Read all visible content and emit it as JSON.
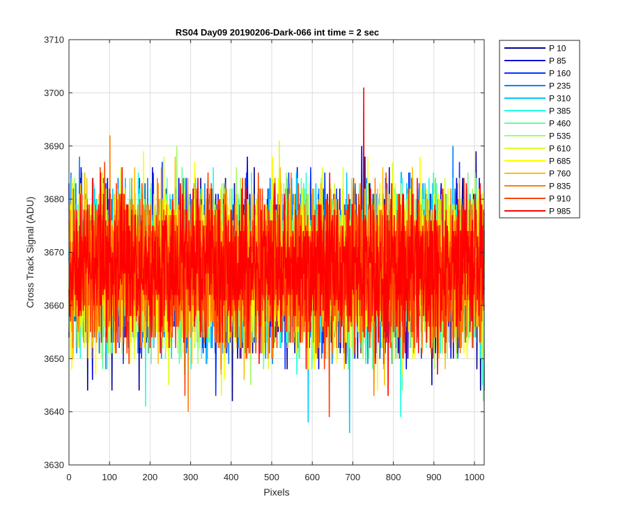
{
  "chart_data": {
    "type": "line",
    "title": "RS04 Day09 20190206-Dark-066 int time = 2 sec",
    "xlabel": "Pixels",
    "ylabel": "Cross Track Signal (ADU)",
    "xlim": [
      0,
      1024
    ],
    "ylim": [
      3630,
      3710
    ],
    "xticks": [
      0,
      100,
      200,
      300,
      400,
      500,
      600,
      700,
      800,
      900,
      1000
    ],
    "yticks": [
      3630,
      3640,
      3650,
      3660,
      3670,
      3680,
      3690,
      3700,
      3710
    ],
    "grid": true,
    "legend_position": "outside-right",
    "series": [
      {
        "name": "P 10",
        "color": "#00008f",
        "center": 3667,
        "spread": 7,
        "peaks": [
          [
            27,
            3684
          ],
          [
            104,
            3676
          ],
          [
            240,
            3682
          ],
          [
            354,
            3678
          ],
          [
            457,
            3686
          ],
          [
            521,
            3672
          ],
          [
            548,
            3684
          ],
          [
            730,
            3688
          ],
          [
            781,
            3684
          ],
          [
            889,
            3680
          ],
          [
            1004,
            3689
          ]
        ],
        "troughs": [
          [
            46,
            3644
          ],
          [
            106,
            3644
          ],
          [
            173,
            3644
          ],
          [
            403,
            3642
          ],
          [
            538,
            3648
          ],
          [
            712,
            3650
          ],
          [
            895,
            3645
          ],
          [
            1015,
            3644
          ],
          [
            1024,
            3644
          ]
        ]
      },
      {
        "name": "P 85",
        "color": "#0000d8",
        "center": 3667,
        "spread": 7,
        "peaks": [
          [
            30,
            3686
          ],
          [
            106,
            3680
          ],
          [
            206,
            3686
          ],
          [
            352,
            3682
          ],
          [
            440,
            3688
          ],
          [
            668,
            3682
          ],
          [
            722,
            3690
          ],
          [
            790,
            3686
          ],
          [
            956,
            3684
          ]
        ],
        "troughs": [
          [
            8,
            3650
          ],
          [
            58,
            3646
          ],
          [
            147,
            3652
          ],
          [
            389,
            3651
          ],
          [
            631,
            3651
          ],
          [
            757,
            3651
          ],
          [
            942,
            3650
          ]
        ]
      },
      {
        "name": "P 160",
        "color": "#0032ff",
        "center": 3667,
        "spread": 7,
        "peaks": [
          [
            31,
            3685
          ],
          [
            230,
            3687
          ],
          [
            438,
            3685
          ],
          [
            506,
            3683
          ],
          [
            596,
            3686
          ],
          [
            838,
            3685
          ]
        ],
        "troughs": [
          [
            10,
            3651
          ],
          [
            179,
            3650
          ],
          [
            362,
            3643
          ],
          [
            533,
            3648
          ],
          [
            689,
            3649
          ],
          [
            797,
            3649
          ],
          [
            869,
            3650
          ]
        ]
      },
      {
        "name": "P 235",
        "color": "#0080ff",
        "center": 3667,
        "spread": 7,
        "peaks": [
          [
            26,
            3688
          ],
          [
            121,
            3684
          ],
          [
            316,
            3680
          ],
          [
            543,
            3683
          ],
          [
            734,
            3684
          ],
          [
            947,
            3690
          ]
        ],
        "troughs": [
          [
            19,
            3651
          ],
          [
            228,
            3650
          ],
          [
            485,
            3650
          ],
          [
            691,
            3649
          ],
          [
            777,
            3648
          ],
          [
            959,
            3650
          ]
        ]
      },
      {
        "name": "P 310",
        "color": "#00c8ff",
        "center": 3667,
        "spread": 7,
        "peaks": [
          [
            87,
            3682
          ],
          [
            312,
            3684
          ],
          [
            609,
            3683
          ],
          [
            683,
            3680
          ],
          [
            836,
            3682
          ]
        ],
        "troughs": [
          [
            92,
            3651
          ],
          [
            253,
            3650
          ],
          [
            590,
            3638
          ],
          [
            692,
            3636
          ],
          [
            822,
            3648
          ]
        ]
      },
      {
        "name": "P 385",
        "color": "#20ffdf",
        "center": 3667,
        "spread": 7,
        "peaks": [
          [
            8,
            3680
          ],
          [
            201,
            3682
          ],
          [
            356,
            3686
          ],
          [
            604,
            3682
          ],
          [
            802,
            3682
          ]
        ],
        "troughs": [
          [
            189,
            3641
          ],
          [
            301,
            3648
          ],
          [
            562,
            3647
          ],
          [
            732,
            3649
          ],
          [
            818,
            3639
          ],
          [
            1020,
            3645
          ]
        ]
      },
      {
        "name": "P 460",
        "color": "#60ff9f",
        "center": 3667,
        "spread": 7,
        "peaks": [
          [
            120,
            3682
          ],
          [
            279,
            3686
          ],
          [
            417,
            3681
          ],
          [
            581,
            3682
          ],
          [
            735,
            3683
          ]
        ],
        "troughs": [
          [
            83,
            3648
          ],
          [
            272,
            3649
          ],
          [
            480,
            3648
          ],
          [
            700,
            3650
          ],
          [
            822,
            3644
          ],
          [
            1022,
            3642
          ]
        ]
      },
      {
        "name": "P 535",
        "color": "#9fff60",
        "center": 3667,
        "spread": 7,
        "peaks": [
          [
            14,
            3684
          ],
          [
            266,
            3690
          ],
          [
            413,
            3686
          ],
          [
            622,
            3684
          ],
          [
            848,
            3684
          ]
        ],
        "troughs": [
          [
            26,
            3652
          ],
          [
            285,
            3648
          ],
          [
            448,
            3645
          ],
          [
            662,
            3650
          ],
          [
            933,
            3650
          ]
        ]
      },
      {
        "name": "P 610",
        "color": "#dfff20",
        "center": 3667,
        "spread": 7,
        "peaks": [
          [
            128,
            3686
          ],
          [
            234,
            3688
          ],
          [
            519,
            3691
          ],
          [
            676,
            3686
          ],
          [
            798,
            3687
          ]
        ],
        "troughs": [
          [
            5,
            3650
          ],
          [
            246,
            3645
          ],
          [
            376,
            3643
          ],
          [
            591,
            3652
          ],
          [
            822,
            3647
          ]
        ]
      },
      {
        "name": "P 685",
        "color": "#ffff00",
        "center": 3667,
        "spread": 7,
        "peaks": [
          [
            184,
            3689
          ],
          [
            310,
            3687
          ],
          [
            502,
            3688
          ],
          [
            737,
            3688
          ],
          [
            866,
            3688
          ]
        ],
        "troughs": [
          [
            66,
            3647
          ],
          [
            150,
            3649
          ],
          [
            383,
            3646
          ],
          [
            606,
            3648
          ],
          [
            761,
            3644
          ]
        ]
      },
      {
        "name": "P 760",
        "color": "#ffbf00",
        "center": 3667,
        "spread": 7,
        "peaks": [
          [
            44,
            3684
          ],
          [
            162,
            3686
          ],
          [
            262,
            3688
          ],
          [
            521,
            3686
          ],
          [
            774,
            3686
          ]
        ],
        "troughs": [
          [
            58,
            3652
          ],
          [
            303,
            3649
          ],
          [
            432,
            3646
          ],
          [
            778,
            3645
          ],
          [
            928,
            3648
          ]
        ]
      },
      {
        "name": "P 835",
        "color": "#ff8000",
        "center": 3667,
        "spread": 7,
        "peaks": [
          [
            101,
            3692
          ],
          [
            228,
            3686
          ],
          [
            548,
            3685
          ],
          [
            755,
            3684
          ],
          [
            963,
            3683
          ]
        ],
        "troughs": [
          [
            294,
            3640
          ],
          [
            375,
            3648
          ],
          [
            633,
            3650
          ],
          [
            752,
            3643
          ],
          [
            965,
            3651
          ]
        ]
      },
      {
        "name": "P 910",
        "color": "#ff4000",
        "center": 3667,
        "spread": 7,
        "peaks": [
          [
            77,
            3686
          ],
          [
            343,
            3685
          ],
          [
            566,
            3683
          ],
          [
            782,
            3685
          ]
        ],
        "troughs": [
          [
            286,
            3643
          ],
          [
            461,
            3651
          ],
          [
            642,
            3639
          ],
          [
            776,
            3649
          ],
          [
            1013,
            3653
          ]
        ]
      },
      {
        "name": "P 985",
        "color": "#ff0000",
        "center": 3667,
        "spread": 7,
        "peaks": [
          [
            58,
            3684
          ],
          [
            131,
            3686
          ],
          [
            306,
            3682
          ],
          [
            727,
            3701
          ],
          [
            825,
            3681
          ],
          [
            1014,
            3683
          ]
        ],
        "troughs": [
          [
            2,
            3658
          ],
          [
            175,
            3652
          ],
          [
            415,
            3652
          ],
          [
            787,
            3643
          ],
          [
            891,
            3652
          ]
        ]
      }
    ]
  }
}
